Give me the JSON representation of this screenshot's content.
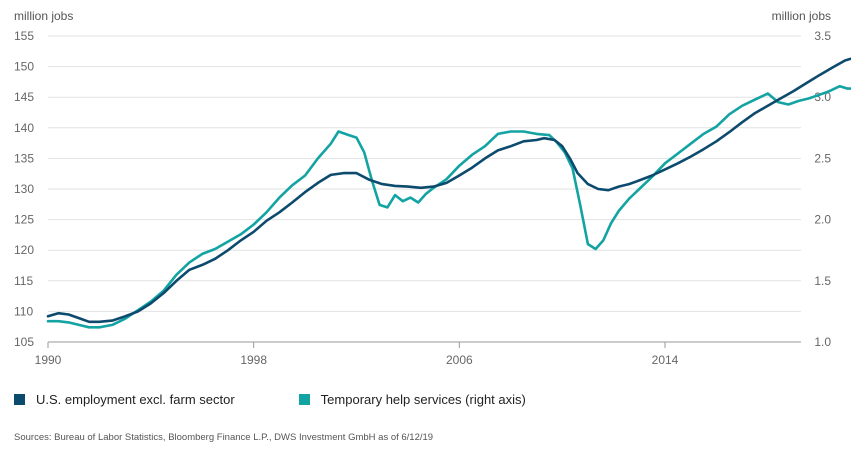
{
  "chart_data": {
    "type": "line",
    "x_axis": {
      "min": 1990,
      "max": 2019.5,
      "ticks": [
        1990,
        1998,
        2006,
        2014
      ]
    },
    "left_axis": {
      "label": "million jobs",
      "min": 105,
      "max": 155,
      "ticks": [
        105,
        110,
        115,
        120,
        125,
        130,
        135,
        140,
        145,
        150,
        155
      ]
    },
    "right_axis": {
      "label": "million jobs",
      "min": 1.0,
      "max": 3.5,
      "ticks": [
        "1.0",
        "1.5",
        "2.0",
        "2.5",
        "3.0",
        "3.5"
      ]
    },
    "grid": "horizontal",
    "legend_position": "bottom-left",
    "series": [
      {
        "name": "U.S. employment excl. farm sector",
        "axis": "left",
        "color": "#0c4a6e",
        "points": [
          [
            1990.0,
            109.2
          ],
          [
            1990.4,
            109.7
          ],
          [
            1990.8,
            109.5
          ],
          [
            1991.2,
            108.9
          ],
          [
            1991.6,
            108.3
          ],
          [
            1992.0,
            108.3
          ],
          [
            1992.5,
            108.5
          ],
          [
            1993.0,
            109.2
          ],
          [
            1993.5,
            110.0
          ],
          [
            1994.0,
            111.3
          ],
          [
            1994.5,
            113.0
          ],
          [
            1995.0,
            115.0
          ],
          [
            1995.5,
            116.8
          ],
          [
            1996.0,
            117.6
          ],
          [
            1996.5,
            118.6
          ],
          [
            1997.0,
            120.0
          ],
          [
            1997.5,
            121.6
          ],
          [
            1998.0,
            123.0
          ],
          [
            1998.5,
            124.8
          ],
          [
            1999.0,
            126.2
          ],
          [
            1999.5,
            127.8
          ],
          [
            2000.0,
            129.5
          ],
          [
            2000.5,
            131.0
          ],
          [
            2001.0,
            132.3
          ],
          [
            2001.5,
            132.6
          ],
          [
            2002.0,
            132.6
          ],
          [
            2002.5,
            131.5
          ],
          [
            2003.0,
            130.8
          ],
          [
            2003.5,
            130.5
          ],
          [
            2004.0,
            130.4
          ],
          [
            2004.5,
            130.2
          ],
          [
            2005.0,
            130.4
          ],
          [
            2005.5,
            131.0
          ],
          [
            2006.0,
            132.2
          ],
          [
            2006.5,
            133.5
          ],
          [
            2007.0,
            135.0
          ],
          [
            2007.5,
            136.3
          ],
          [
            2008.0,
            137.0
          ],
          [
            2008.5,
            137.8
          ],
          [
            2009.0,
            138.0
          ],
          [
            2009.3,
            138.3
          ],
          [
            2009.7,
            138.0
          ],
          [
            2010.0,
            137.0
          ],
          [
            2010.3,
            135.0
          ],
          [
            2010.6,
            132.6
          ],
          [
            2011.0,
            130.8
          ],
          [
            2011.4,
            130.0
          ],
          [
            2011.8,
            129.8
          ],
          [
            2012.2,
            130.4
          ],
          [
            2012.6,
            130.8
          ],
          [
            2013.0,
            131.4
          ],
          [
            2013.5,
            132.2
          ],
          [
            2014.0,
            133.2
          ],
          [
            2014.5,
            134.2
          ],
          [
            2015.0,
            135.3
          ],
          [
            2015.5,
            136.5
          ],
          [
            2016.0,
            137.8
          ],
          [
            2016.5,
            139.3
          ],
          [
            2017.0,
            140.9
          ],
          [
            2017.5,
            142.4
          ],
          [
            2018.0,
            143.6
          ],
          [
            2018.5,
            144.8
          ],
          [
            2019.0,
            146.0
          ],
          [
            2019.5,
            147.3
          ],
          [
            2020.0,
            148.6
          ],
          [
            2020.5,
            149.8
          ],
          [
            2021.0,
            151.0
          ],
          [
            2021.4,
            151.5
          ]
        ]
      },
      {
        "name": "Temporary help services (right axis)",
        "axis": "right",
        "color": "#13a3a3",
        "points": [
          [
            1990.0,
            1.17
          ],
          [
            1990.4,
            1.17
          ],
          [
            1990.8,
            1.16
          ],
          [
            1991.2,
            1.14
          ],
          [
            1991.6,
            1.12
          ],
          [
            1992.0,
            1.12
          ],
          [
            1992.5,
            1.14
          ],
          [
            1993.0,
            1.19
          ],
          [
            1993.5,
            1.26
          ],
          [
            1994.0,
            1.33
          ],
          [
            1994.5,
            1.42
          ],
          [
            1995.0,
            1.55
          ],
          [
            1995.5,
            1.65
          ],
          [
            1996.0,
            1.72
          ],
          [
            1996.5,
            1.76
          ],
          [
            1997.0,
            1.82
          ],
          [
            1997.5,
            1.88
          ],
          [
            1998.0,
            1.96
          ],
          [
            1998.5,
            2.06
          ],
          [
            1999.0,
            2.18
          ],
          [
            1999.5,
            2.28
          ],
          [
            2000.0,
            2.36
          ],
          [
            2000.5,
            2.5
          ],
          [
            2001.0,
            2.62
          ],
          [
            2001.3,
            2.72
          ],
          [
            2001.7,
            2.69
          ],
          [
            2002.0,
            2.67
          ],
          [
            2002.3,
            2.55
          ],
          [
            2002.6,
            2.32
          ],
          [
            2002.9,
            2.12
          ],
          [
            2003.2,
            2.1
          ],
          [
            2003.5,
            2.2
          ],
          [
            2003.8,
            2.15
          ],
          [
            2004.1,
            2.18
          ],
          [
            2004.4,
            2.14
          ],
          [
            2004.7,
            2.21
          ],
          [
            2005.0,
            2.26
          ],
          [
            2005.5,
            2.33
          ],
          [
            2006.0,
            2.44
          ],
          [
            2006.5,
            2.53
          ],
          [
            2007.0,
            2.6
          ],
          [
            2007.5,
            2.7
          ],
          [
            2008.0,
            2.72
          ],
          [
            2008.5,
            2.72
          ],
          [
            2009.0,
            2.7
          ],
          [
            2009.5,
            2.69
          ],
          [
            2009.8,
            2.63
          ],
          [
            2010.1,
            2.55
          ],
          [
            2010.4,
            2.42
          ],
          [
            2010.7,
            2.12
          ],
          [
            2011.0,
            1.8
          ],
          [
            2011.3,
            1.76
          ],
          [
            2011.6,
            1.83
          ],
          [
            2011.9,
            1.97
          ],
          [
            2012.2,
            2.07
          ],
          [
            2012.6,
            2.17
          ],
          [
            2013.0,
            2.25
          ],
          [
            2013.5,
            2.35
          ],
          [
            2014.0,
            2.46
          ],
          [
            2014.5,
            2.54
          ],
          [
            2015.0,
            2.62
          ],
          [
            2015.5,
            2.7
          ],
          [
            2016.0,
            2.76
          ],
          [
            2016.5,
            2.86
          ],
          [
            2017.0,
            2.93
          ],
          [
            2017.5,
            2.98
          ],
          [
            2018.0,
            3.03
          ],
          [
            2018.4,
            2.96
          ],
          [
            2018.8,
            2.94
          ],
          [
            2019.2,
            2.97
          ],
          [
            2019.6,
            2.99
          ],
          [
            2020.0,
            3.02
          ],
          [
            2020.4,
            3.05
          ],
          [
            2020.8,
            3.09
          ],
          [
            2021.1,
            3.07
          ],
          [
            2021.4,
            3.07
          ]
        ]
      }
    ]
  },
  "source_text": "Sources: Bureau of Labor Statistics, Bloomberg Finance L.P., DWS Investment GmbH as of 6/12/19"
}
